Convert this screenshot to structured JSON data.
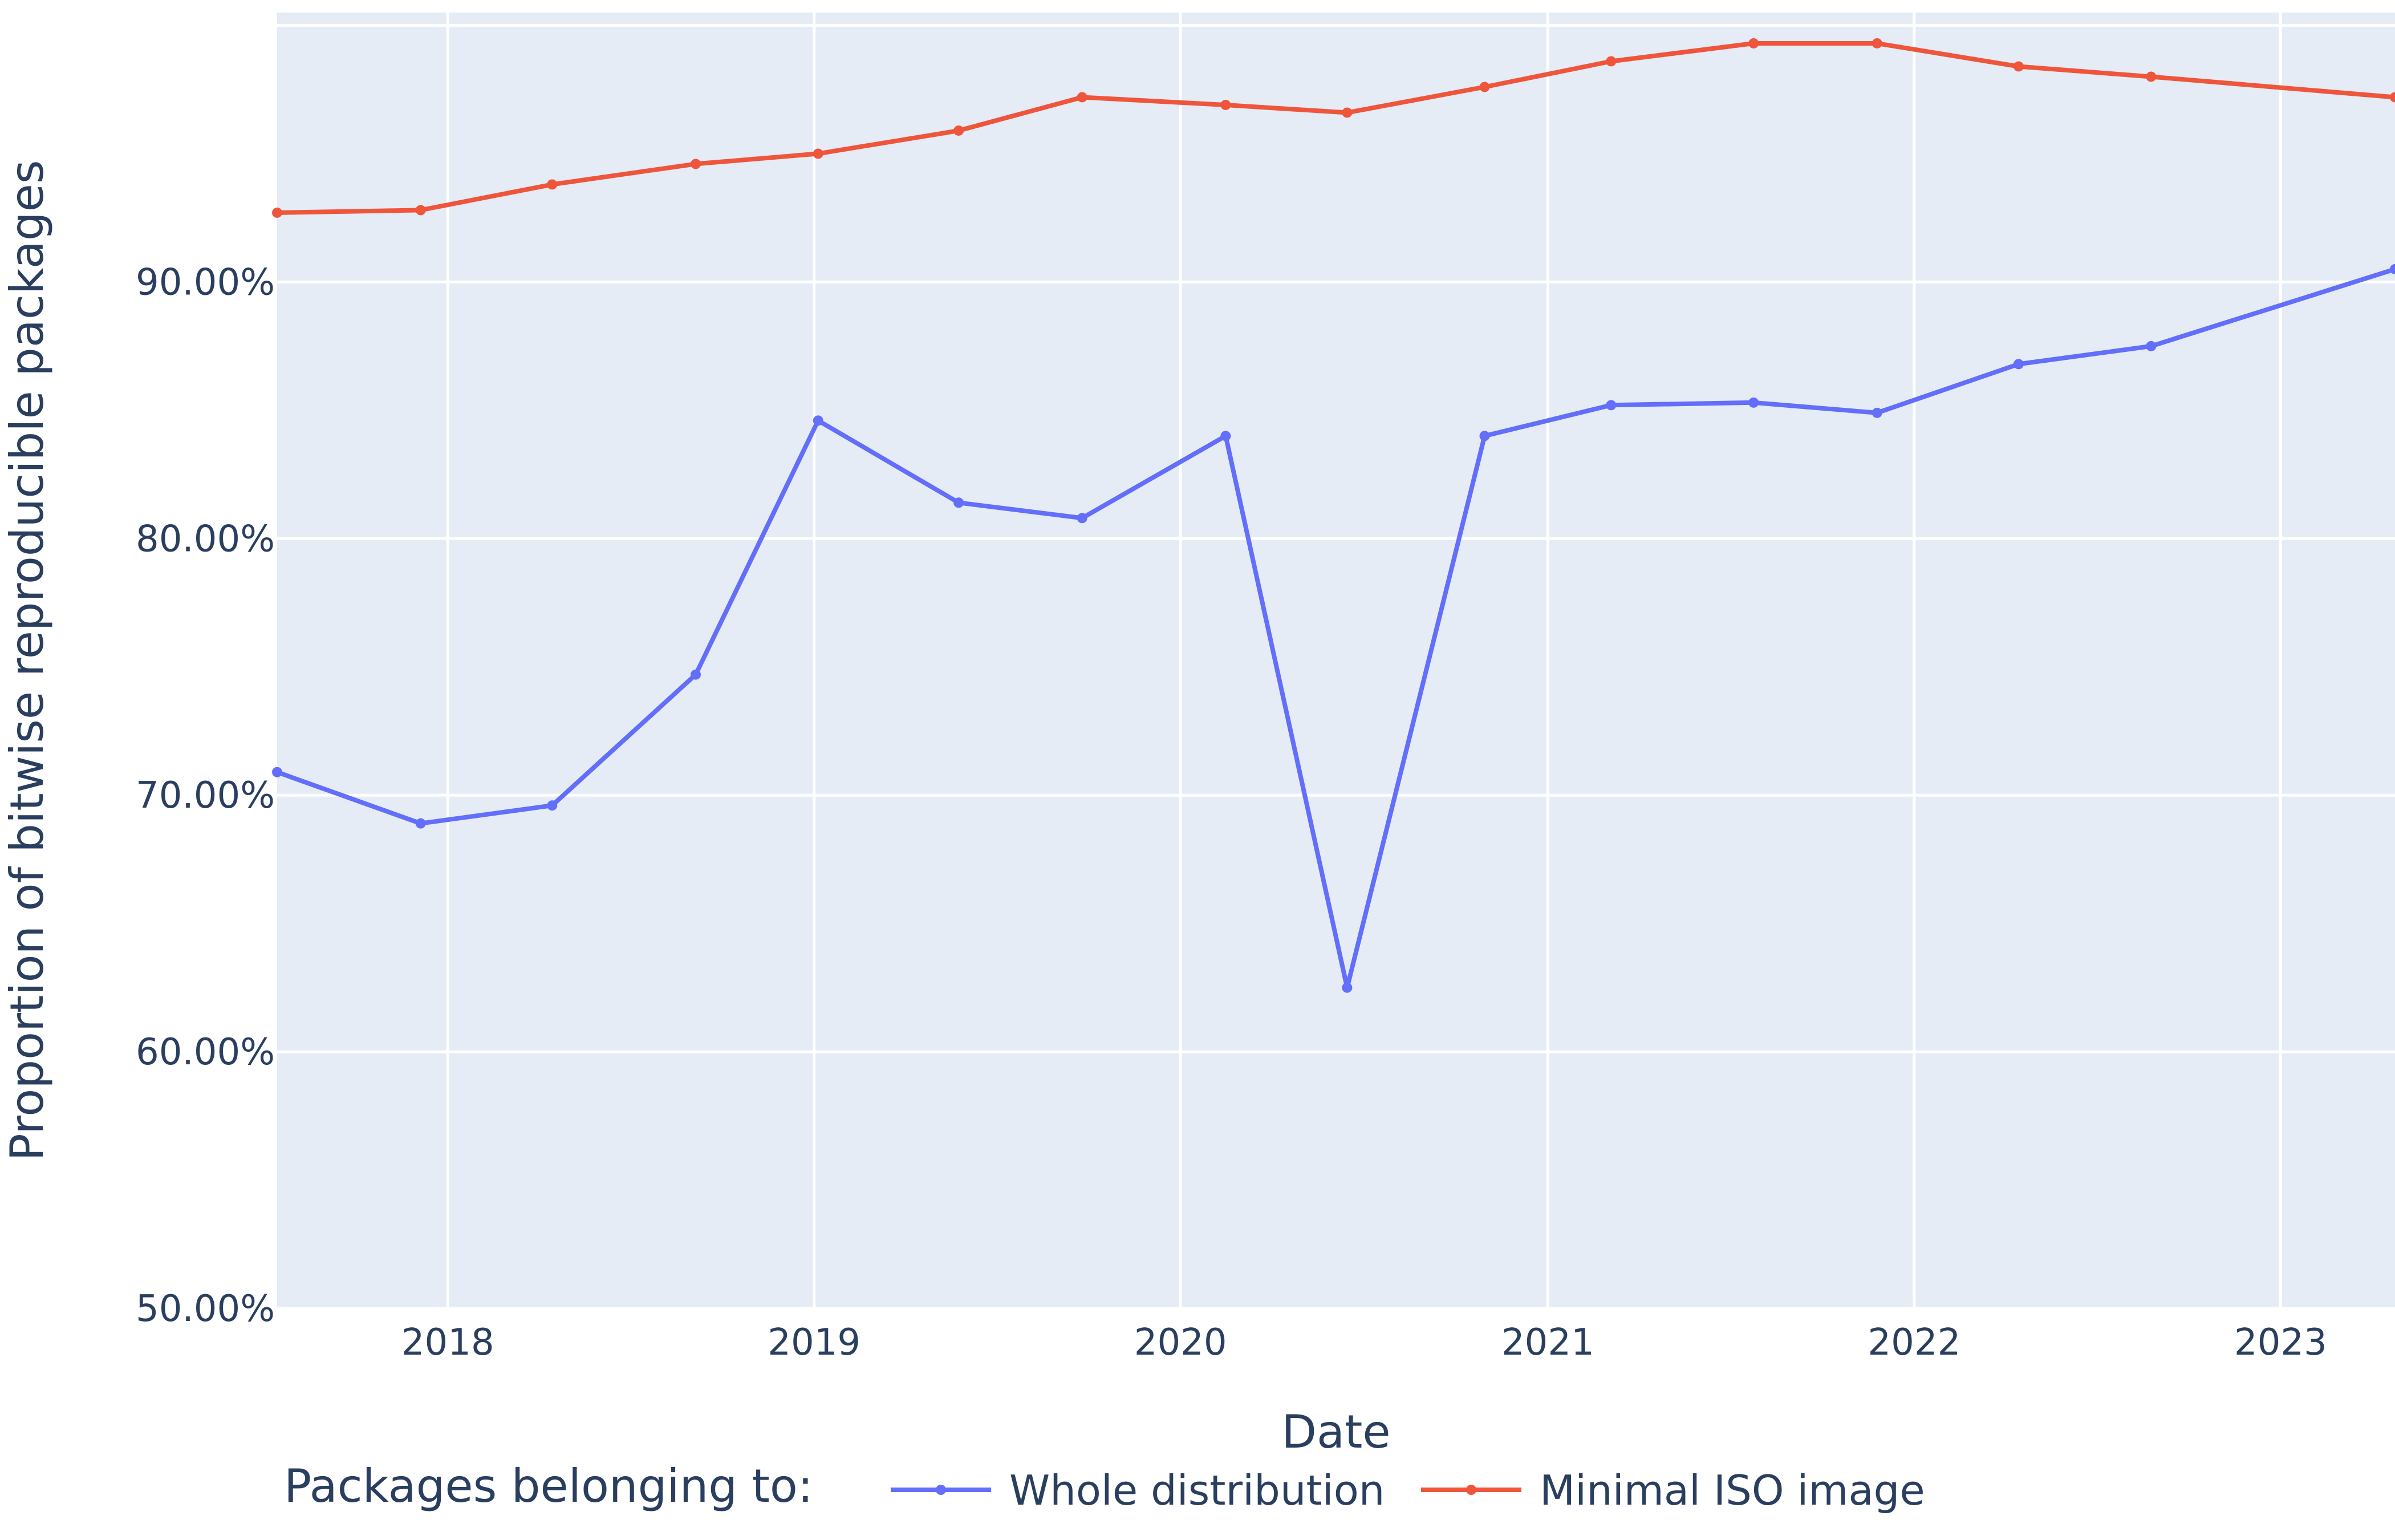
{
  "chart_data": {
    "type": "line",
    "xlabel": "Date",
    "ylabel": "Proportion of bitwise reproducible packages",
    "x_range": [
      "2017-07-15",
      "2023-04-25"
    ],
    "y_range": [
      50,
      100.5
    ],
    "x_ticks": [
      "2018",
      "2019",
      "2020",
      "2021",
      "2022",
      "2023"
    ],
    "y_ticks": [
      "50.00%",
      "60.00%",
      "70.00%",
      "80.00%",
      "90.00%"
    ],
    "y_tick_values": [
      50,
      60,
      70,
      80,
      90
    ],
    "grid": true,
    "legend": {
      "title": "Packages belonging to:",
      "placement": "bottom"
    },
    "series": [
      {
        "name": "Whole distribution",
        "color": "#636efa",
        "x": [
          "2017-07-15",
          "2017-12-05",
          "2018-04-15",
          "2018-09-05",
          "2019-01-05",
          "2019-05-25",
          "2019-09-25",
          "2020-02-15",
          "2020-06-15",
          "2020-10-30",
          "2021-03-05",
          "2021-07-25",
          "2021-11-25",
          "2022-04-15",
          "2022-08-25",
          "2023-04-25"
        ],
        "y": [
          70.9,
          68.9,
          69.6,
          74.7,
          84.6,
          81.4,
          80.8,
          84.0,
          62.5,
          84.0,
          85.2,
          85.3,
          84.9,
          86.8,
          87.5,
          90.5
        ]
      },
      {
        "name": "Minimal ISO image",
        "color": "#ef553b",
        "x": [
          "2017-07-15",
          "2017-12-05",
          "2018-04-15",
          "2018-09-05",
          "2019-01-05",
          "2019-05-25",
          "2019-09-25",
          "2020-02-15",
          "2020-06-15",
          "2020-10-30",
          "2021-03-05",
          "2021-07-25",
          "2021-11-25",
          "2022-04-15",
          "2022-08-25",
          "2023-04-25"
        ],
        "y": [
          92.7,
          92.8,
          93.8,
          94.6,
          95.0,
          95.9,
          97.2,
          96.9,
          96.6,
          97.6,
          98.6,
          99.3,
          99.3,
          98.4,
          98.0,
          97.2
        ]
      }
    ]
  }
}
